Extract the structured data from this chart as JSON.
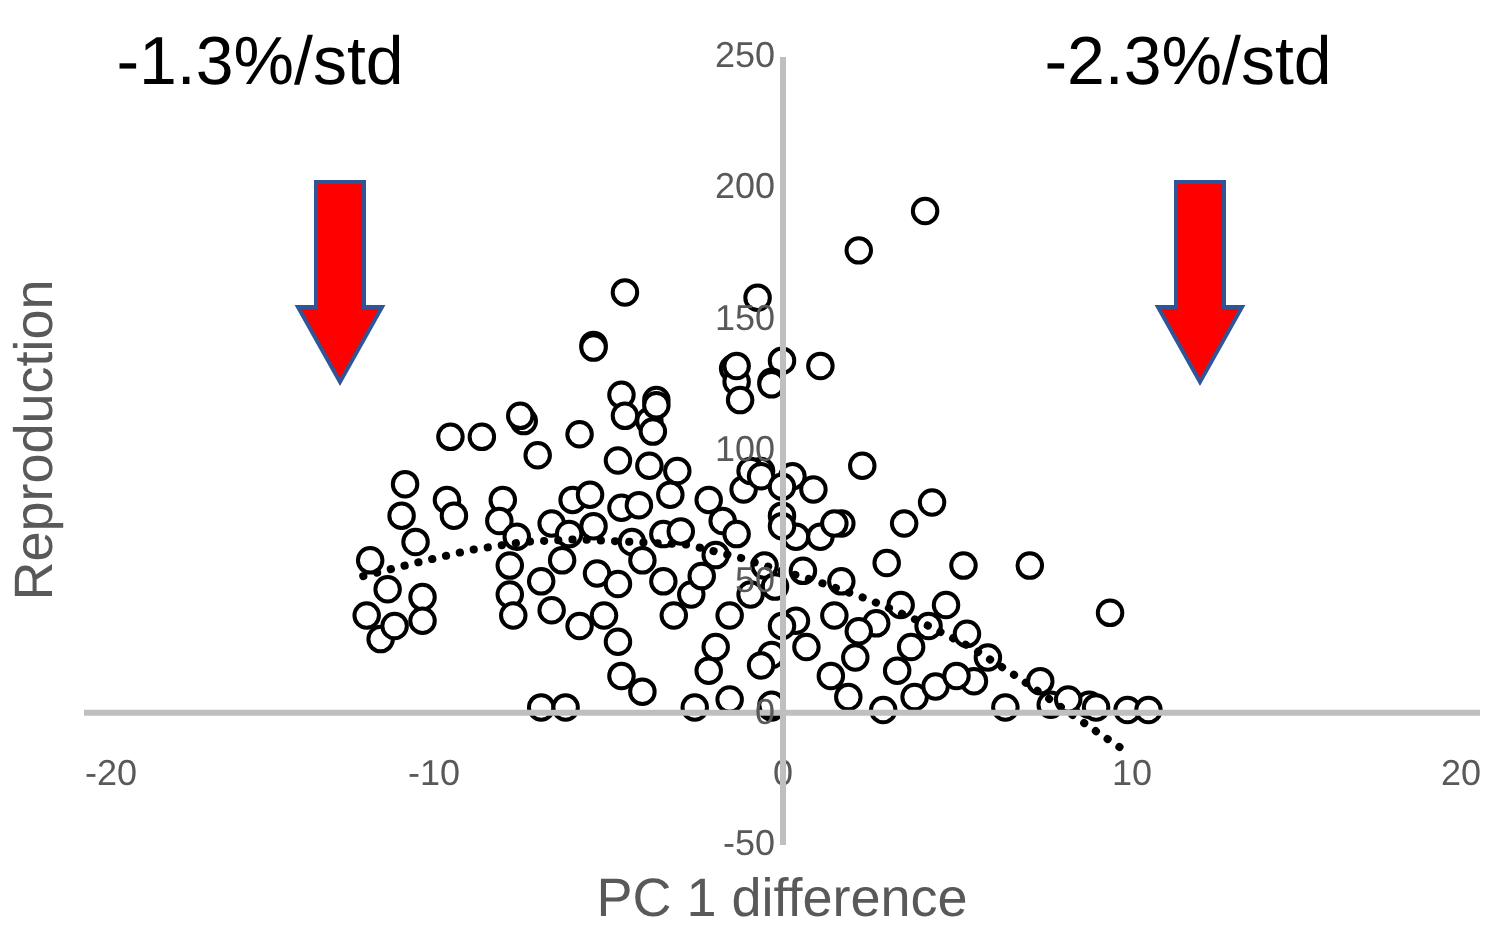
{
  "chart_data": {
    "type": "scatter",
    "xlabel": "PC 1 difference",
    "ylabel": "Reproduction",
    "annotations": [
      "-1.3%/std",
      "-2.3%/std"
    ],
    "xlim": [
      -20,
      20
    ],
    "xticks": [
      -20,
      -10,
      0,
      10,
      20
    ],
    "ylim": [
      -50,
      250
    ],
    "yticks": [
      -50,
      0,
      50,
      100,
      150,
      200,
      250
    ],
    "grid": false,
    "series": [
      {
        "marker": "circle",
        "color": "#000000",
        "x": [
          4.1,
          2.2,
          -0.7,
          0.0,
          -0.3,
          1.1,
          2.3,
          4.3,
          3.5,
          1.7,
          -0.6,
          0.3,
          0.9,
          0.0,
          0.4,
          1.1,
          3.0,
          5.2,
          7.1,
          9.4,
          0.6,
          1.7,
          3.4,
          4.7,
          5.3,
          4.2,
          5.9,
          0.4,
          1.5,
          2.7,
          0.7,
          2.1,
          1.4,
          1.9,
          2.9,
          3.8,
          4.4,
          5.5,
          6.4,
          7.4,
          7.7,
          8.8,
          9.9,
          -0.3,
          -0.3,
          3.3,
          5.0,
          3.7,
          2.2,
          1.5,
          -0.5,
          10.5,
          8.2,
          9.0,
          -4.5,
          -5.4,
          -1.4,
          -1.3,
          -3.6,
          -3.8,
          -7.4,
          -10.8,
          -9.6,
          -9.4,
          -10.9,
          -10.5,
          -11.8,
          -11.3,
          -11.9,
          -11.5,
          -11.1,
          -10.3,
          -10.3,
          -9.5,
          -8.6,
          -7.5,
          -7.0,
          -5.8,
          -8.0,
          -8.1,
          -7.6,
          -7.8,
          -7.8,
          -7.7,
          -6.9,
          -6.6,
          -6.6,
          -6.0,
          -5.5,
          -6.1,
          -6.3,
          -5.8,
          -5.1,
          -4.7,
          -5.4,
          -5.3,
          -4.7,
          -4.6,
          -4.1,
          -4.6,
          -3.6,
          -3.7,
          -4.5,
          -4.7,
          -3.8,
          -3.0,
          -3.2,
          -4.3,
          -4.0,
          -3.4,
          -2.9,
          -3.4,
          -3.1,
          -2.6,
          -2.3,
          -1.9,
          -1.7,
          -2.1,
          -1.1,
          -0.9,
          -0.6,
          -1.3,
          -0.9,
          -1.5,
          -1.9,
          -2.1,
          -2.5,
          -1.5,
          -0.6,
          -0.3,
          -4.6,
          -4.0,
          -6.9,
          -6.2,
          -1.3,
          -1.2,
          -0.3,
          -5.4,
          0.0,
          0.0,
          -0.2,
          0.0
        ],
        "values": [
          191,
          176,
          158,
          134,
          126,
          132,
          94,
          80,
          72,
          72,
          92,
          90,
          85,
          75,
          67,
          67,
          57,
          56,
          56,
          38,
          54,
          50,
          41,
          41,
          30,
          33,
          21,
          35,
          37,
          34,
          25,
          21,
          14,
          6,
          1,
          6,
          10,
          12,
          2,
          12,
          3,
          3,
          1,
          2,
          22,
          16,
          14,
          25,
          31,
          72,
          56,
          1,
          5,
          2,
          160,
          140,
          131,
          126,
          119,
          111,
          111,
          87,
          81,
          75,
          75,
          65,
          58,
          47,
          37,
          28,
          33,
          44,
          35,
          105,
          105,
          113,
          98,
          106,
          81,
          73,
          67,
          56,
          45,
          37,
          50,
          39,
          72,
          81,
          83,
          68,
          58,
          33,
          37,
          27,
          71,
          53,
          49,
          78,
          79,
          121,
          117,
          107,
          113,
          96,
          94,
          92,
          83,
          65,
          58,
          68,
          69,
          50,
          37,
          45,
          52,
          60,
          73,
          81,
          85,
          92,
          90,
          68,
          45,
          37,
          25,
          16,
          2,
          5,
          18,
          3,
          14,
          8,
          2,
          2,
          132,
          119,
          125,
          139,
          86,
          71,
          48,
          33
        ]
      },
      {
        "type": "line",
        "marker": "none",
        "line_style": "dotted",
        "color": "#000000",
        "x": [
          -12.0,
          -10.5,
          -8.9,
          -7.4,
          -5.9,
          -4.3,
          -2.7,
          -1.2,
          -0.5,
          1.0,
          2.5,
          3.9,
          5.4,
          6.7,
          7.9,
          9.1,
          10.0
        ],
        "values": [
          52,
          57,
          62,
          65,
          66,
          65,
          64,
          59,
          56,
          50,
          43,
          35,
          25,
          14,
          3,
          -8,
          -16
        ]
      }
    ]
  }
}
